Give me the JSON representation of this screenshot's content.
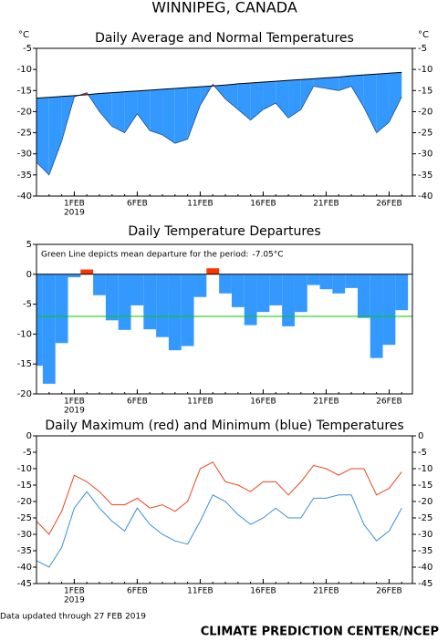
{
  "title": "WINNIPEG, CANADA",
  "footer_note": "Data updated through 27 FEB 2019",
  "credit": "CLIMATE PREDICTION CENTER/NCEP",
  "chart_data": [
    {
      "type": "area_vs_normal",
      "title": "Daily Average and Normal Temperatures",
      "y_unit_label": "°C",
      "year_label": "2019",
      "categories": [
        null,
        null,
        null,
        "1FEB",
        null,
        null,
        null,
        null,
        "6FEB",
        null,
        null,
        null,
        null,
        "11FEB",
        null,
        null,
        null,
        null,
        "16FEB",
        null,
        null,
        null,
        null,
        "21FEB",
        null,
        null,
        null,
        null,
        "26FEB",
        null
      ],
      "values": [
        -32,
        -35,
        -27,
        -16.5,
        -15.5,
        -20,
        -23.5,
        -25,
        -20.5,
        -24.5,
        -25.5,
        -27.5,
        -26.5,
        -18.5,
        -13.5,
        -17,
        -19.5,
        -22,
        -19.5,
        -18,
        -21.5,
        -19.5,
        -14,
        -14.5,
        -15,
        -14,
        -19,
        -25,
        -22.5,
        -16.5
      ],
      "normal": [
        -16.8,
        -16.6,
        -16.4,
        -16.2,
        -16.0,
        -15.7,
        -15.5,
        -15.3,
        -15.1,
        -14.9,
        -14.7,
        -14.5,
        -14.3,
        -14.1,
        -13.9,
        -13.7,
        -13.4,
        -13.2,
        -13.0,
        -12.8,
        -12.6,
        -12.4,
        -12.2,
        -12.0,
        -11.8,
        -11.5,
        -11.3,
        -11.1,
        -10.9,
        -10.7
      ],
      "above_color": "#ff3300",
      "below_color": "#3399ff",
      "line_color": "#000000",
      "ylim": [
        -40,
        -5
      ],
      "yticks": [
        -40,
        -35,
        -30,
        -25,
        -20,
        -15,
        -10,
        -5
      ]
    },
    {
      "type": "bar",
      "title": "Daily Temperature Departures",
      "year_label": "2019",
      "annotation": "Green Line depicts mean departure for the period:",
      "mean_departure": {
        "value": -7.05,
        "label": "-7.05°C"
      },
      "categories": [
        null,
        null,
        null,
        "1FEB",
        null,
        null,
        null,
        null,
        "6FEB",
        null,
        null,
        null,
        null,
        "11FEB",
        null,
        null,
        null,
        null,
        "16FEB",
        null,
        null,
        null,
        null,
        "21FEB",
        null,
        null,
        null,
        null,
        "26FEB",
        null
      ],
      "values": [
        -15.3,
        -18.3,
        -11.5,
        -0.5,
        0.8,
        -3.5,
        -7.7,
        -9.3,
        -5.2,
        -9.2,
        -10.5,
        -12.7,
        -12.0,
        -3.8,
        1.0,
        -3.2,
        -5.5,
        -8.5,
        -6.3,
        -5.2,
        -8.7,
        -6.3,
        -1.8,
        -2.5,
        -3.2,
        -2.3,
        -7.3,
        -14.0,
        -11.8,
        -6.0
      ],
      "positive_color": "#ff3300",
      "negative_color": "#3399ff",
      "mean_color": "#00cc00",
      "ylim": [
        -20,
        5
      ],
      "yticks": [
        -20,
        -15,
        -10,
        -5,
        0,
        5
      ]
    },
    {
      "type": "line",
      "title": "Daily Maximum (red) and Minimum (blue) Temperatures",
      "year_label": "2019",
      "categories": [
        null,
        null,
        null,
        "1FEB",
        null,
        null,
        null,
        null,
        "6FEB",
        null,
        null,
        null,
        null,
        "11FEB",
        null,
        null,
        null,
        null,
        "16FEB",
        null,
        null,
        null,
        null,
        "21FEB",
        null,
        null,
        null,
        null,
        "26FEB",
        null
      ],
      "series": [
        {
          "color": "#e8461e",
          "values": [
            -26,
            -30,
            -23,
            -12,
            -14,
            -17,
            -21,
            -21,
            -19,
            -22,
            -21,
            -23,
            -20,
            -10,
            -8,
            -14,
            -15,
            -17,
            -14,
            -14,
            -18,
            -14,
            -9,
            -10,
            -12,
            -10,
            -10,
            -18,
            -16,
            -11
          ]
        },
        {
          "color": "#3a8fd9",
          "values": [
            -38,
            -40,
            -34,
            -22,
            -17,
            -22,
            -26,
            -29,
            -22,
            -27,
            -30,
            -32,
            -33,
            -26,
            -18,
            -20,
            -24,
            -27,
            -25,
            -22,
            -25,
            -25,
            -19,
            -19,
            -18,
            -18,
            -27,
            -32,
            -29,
            -22
          ]
        }
      ],
      "ylim": [
        -45,
        0
      ],
      "yticks": [
        -45,
        -40,
        -35,
        -30,
        -25,
        -20,
        -15,
        -10,
        -5,
        0
      ]
    }
  ]
}
